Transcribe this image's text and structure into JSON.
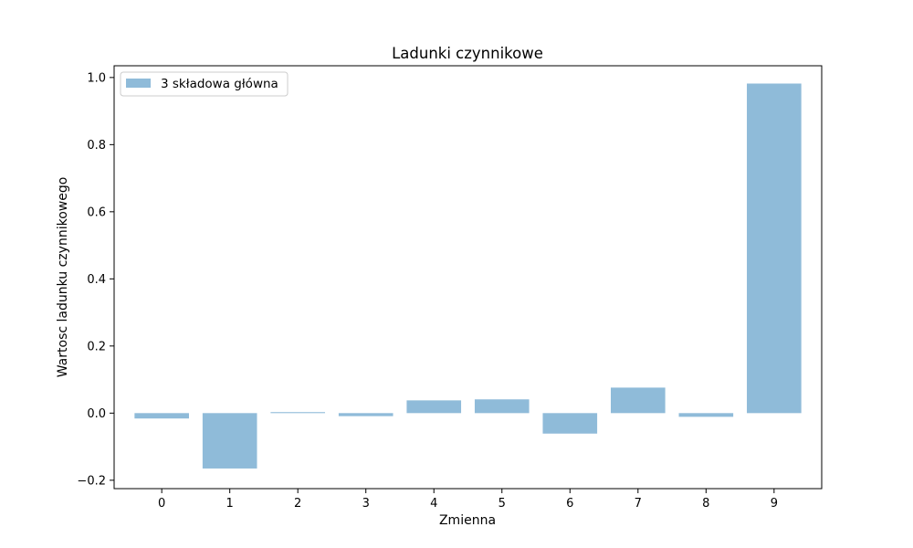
{
  "chart_data": {
    "type": "bar",
    "title": "Ladunki czynnikowe",
    "xlabel": "Zmienna",
    "ylabel": "Wartosc ladunku czynnikowego",
    "categories": [
      "0",
      "1",
      "2",
      "3",
      "4",
      "5",
      "6",
      "7",
      "8",
      "9"
    ],
    "series": [
      {
        "name": "3 składowa główna",
        "values": [
          -0.016,
          -0.165,
          0.003,
          -0.009,
          0.038,
          0.041,
          -0.061,
          0.076,
          -0.011,
          0.982
        ],
        "color": "#8fbbd9"
      }
    ],
    "ylim": [
      -0.225,
      1.035
    ],
    "yticks": [
      -0.2,
      0.0,
      0.2,
      0.4,
      0.6,
      0.8,
      1.0
    ],
    "ytick_labels": [
      "−0.2",
      "0.0",
      "0.2",
      "0.4",
      "0.6",
      "0.8",
      "1.0"
    ],
    "grid": false,
    "legend_position": "upper-left"
  }
}
